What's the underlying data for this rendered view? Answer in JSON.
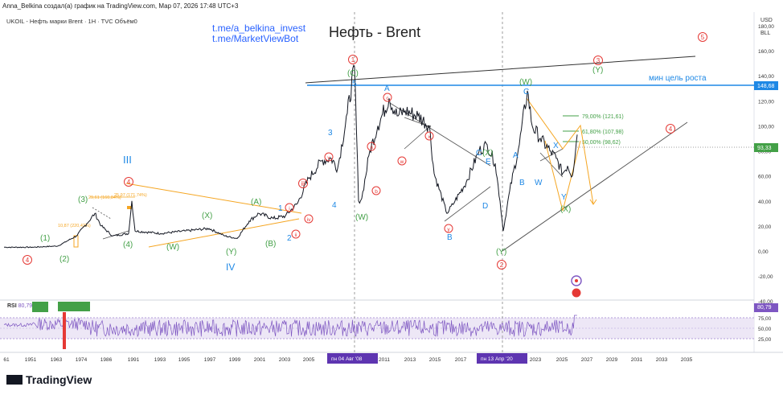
{
  "header": {
    "attribution": "Anna_Belkina создал(а) график на TradingView.com, Мар 07, 2026 17:48 UTC+3",
    "symbol_line": "UKOIL - Нефть марки Brent · 1H · TVC  Объём0",
    "links": [
      "t.me/a_belkina_invest",
      "t.me/MarketViewBot"
    ],
    "title": "Нефть - Brent"
  },
  "price_axis": {
    "currency": "USD",
    "unit": "BLL",
    "ticks": [
      "180,00",
      "160,00",
      "140,00",
      "120,00",
      "100,00",
      "80,00",
      "60,00",
      "40,00",
      "20,00",
      "0,00",
      "-20,00",
      "-40,00"
    ],
    "marker_target": "148,68",
    "marker_current": "93,33"
  },
  "time_axis": {
    "ticks": [
      "61",
      "1951",
      "1963",
      "1974",
      "1986",
      "1991",
      "1993",
      "1995",
      "1997",
      "1999",
      "2001",
      "2003",
      "2005",
      "2011",
      "2013",
      "2015",
      "2017",
      "2023",
      "2025",
      "2027",
      "2029",
      "2031",
      "2033",
      "2035"
    ],
    "highlight_left": "пн 04 Авг '08",
    "highlight_right": "пн 13 Апр '20"
  },
  "annotations": {
    "target_text": "мин цель роста",
    "fib_79": "79,00% (121,61)",
    "fib_618": "61,80% (107,98)",
    "fib_50": "50,00% (98,62)",
    "gold_note_1": "29,61 (160,84%)",
    "gold_note_2": "25,97 (171,74%)",
    "gold_note_3": "10,87 (220,42%)",
    "wave_labels": {
      "w1": "(1)",
      "w2": "(2)",
      "w3": "(3)",
      "w4": "(4)",
      "wW": "(W)",
      "wX": "(X)",
      "wY": "(Y)",
      "wA": "(A)",
      "wB": "(B)",
      "wC": "(C)",
      "III": "III",
      "IV": "IV",
      "n1": "1",
      "n2": "2",
      "n3": "3",
      "n4": "4",
      "n5": "5",
      "A": "A",
      "B": "B",
      "C": "C",
      "D": "D",
      "E": "E",
      "W": "W",
      "X": "X",
      "Y": "Y",
      "ri": "i",
      "rii": "ii",
      "riii": "iii",
      "riv": "iv",
      "rv": "v",
      "ra": "a",
      "rb": "b",
      "rc": "c",
      "rw": "w",
      "rx": "x",
      "ry": "y",
      "c1": "1",
      "c2": "2",
      "c3": "3",
      "c4": "4",
      "c5": "5"
    }
  },
  "rsi": {
    "label": "RSI",
    "value": "80,79",
    "ticks": [
      "75,00",
      "50,00",
      "25,00"
    ]
  },
  "footer": {
    "brand": "TradingView"
  },
  "chart_data": {
    "type": "line",
    "title": "Нефть - Brent",
    "ylabel": "USD/BLL",
    "ylim": [
      -40,
      180
    ],
    "x": [
      1951,
      1963,
      1974,
      1986,
      1991,
      1993,
      1995,
      1997,
      1999,
      2001,
      2003,
      2005,
      2008,
      2009,
      2011,
      2013,
      2015,
      2016,
      2018,
      2020,
      2022,
      2023,
      2025,
      2026
    ],
    "values": [
      3,
      3,
      12,
      14,
      18,
      17,
      17,
      19,
      10,
      27,
      30,
      56,
      147,
      35,
      125,
      110,
      28,
      30,
      85,
      16,
      130,
      85,
      58,
      93
    ],
    "projection_target": 148.68,
    "current_price": 93.33,
    "fib_levels": [
      {
        "ratio": 0.79,
        "price": 121.61
      },
      {
        "ratio": 0.618,
        "price": 107.98
      },
      {
        "ratio": 0.5,
        "price": 98.62
      }
    ],
    "rsi_last": 80.79
  },
  "colors": {
    "price": "#131722",
    "blue": "#1e88e5",
    "green": "#43a047",
    "red": "#e53935",
    "orange": "#f5a623",
    "rsi": "#7e57c2"
  }
}
